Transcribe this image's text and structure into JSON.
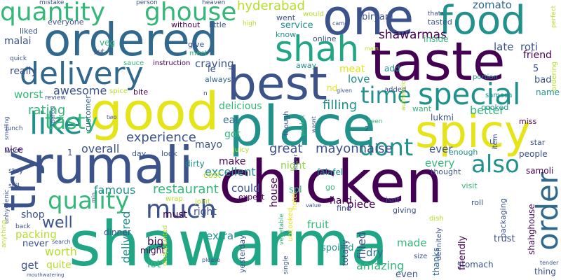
{
  "palette": {
    "dark_purple": "#440154",
    "indigo": "#3b528b",
    "blue": "#31688e",
    "teal": "#21918c",
    "green": "#35b779",
    "lime": "#90d743",
    "yellow": "#e5e419",
    "background": "#ffffff"
  },
  "words": [
    {
      "text": "shawarma",
      "color": "#21a685"
    },
    {
      "text": "chicken",
      "color": "#440154"
    },
    {
      "text": "rumali",
      "color": "#3b528b"
    },
    {
      "text": "place",
      "color": "#21918c"
    },
    {
      "text": "taste",
      "color": "#440154"
    },
    {
      "text": "good",
      "color": "#e5e419"
    },
    {
      "text": "one",
      "color": "#3b528b"
    },
    {
      "text": "ordered",
      "color": "#31688e"
    },
    {
      "text": "best",
      "color": "#3b528b"
    },
    {
      "text": "food",
      "color": "#21918c"
    },
    {
      "text": "spicy",
      "color": "#e5e419"
    },
    {
      "text": "try",
      "color": "#3b528b"
    },
    {
      "text": "delivery",
      "color": "#31688e"
    },
    {
      "text": "shah",
      "color": "#21a685"
    },
    {
      "text": "order",
      "color": "#31688e"
    },
    {
      "text": "special",
      "color": "#21918c"
    },
    {
      "text": "like",
      "color": "#21918c"
    },
    {
      "text": "quantity",
      "color": "#35b779"
    },
    {
      "text": "ghouse",
      "color": "#35b779"
    },
    {
      "text": "much",
      "color": "#3b528b"
    },
    {
      "text": "quality",
      "color": "#35b779"
    },
    {
      "text": "time",
      "color": "#21918c"
    },
    {
      "text": "also",
      "color": "#21918c"
    },
    {
      "text": "dont",
      "color": "#21918c"
    },
    {
      "text": "tasty",
      "color": "#35b779"
    },
    {
      "text": "mayonnaise",
      "color": "#3b528b"
    },
    {
      "text": "great",
      "color": "#3b528b"
    },
    {
      "text": "shawarmas",
      "color": "#440154"
    },
    {
      "text": "hyderabad",
      "color": "#b5de2b"
    },
    {
      "text": "restaurant",
      "color": "#35b779"
    },
    {
      "text": "experience",
      "color": "#3b528b"
    },
    {
      "text": "well",
      "color": "#3b528b"
    },
    {
      "text": "zomato",
      "color": "#31688e"
    },
    {
      "text": "rating",
      "color": "#35b779"
    },
    {
      "text": "filling",
      "color": "#21918c"
    },
    {
      "text": "awesome",
      "color": "#3b528b"
    },
    {
      "text": "better",
      "color": "#35b779"
    },
    {
      "text": "delicious",
      "color": "#35b779"
    },
    {
      "text": "excellent",
      "color": "#21918c"
    },
    {
      "text": "service",
      "color": "#21918c"
    },
    {
      "text": "worth",
      "color": "#b5de2b"
    },
    {
      "text": "packing",
      "color": "#b5de2b"
    },
    {
      "text": "famous",
      "color": "#21918c"
    },
    {
      "text": "overall",
      "color": "#3b528b"
    },
    {
      "text": "amazing",
      "color": "#35b779"
    },
    {
      "text": "worst",
      "color": "#35b779"
    },
    {
      "text": "customer",
      "color": "#31688e"
    },
    {
      "text": "biryani",
      "color": "#3b528b"
    },
    {
      "text": "late",
      "color": "#3b528b"
    },
    {
      "text": "roti",
      "color": "#3b528b"
    },
    {
      "text": "friend",
      "color": "#440154"
    },
    {
      "text": "love",
      "color": "#21918c"
    },
    {
      "text": "meat",
      "color": "#e5e419"
    },
    {
      "text": "craving",
      "color": "#3b528b"
    },
    {
      "text": "make",
      "color": "#440154"
    },
    {
      "text": "got",
      "color": "#35b779"
    },
    {
      "text": "eat",
      "color": "#31688e"
    },
    {
      "text": "mayo",
      "color": "#3b528b"
    },
    {
      "text": "every",
      "color": "#35b779"
    },
    {
      "text": "ever",
      "color": "#3b528b"
    },
    {
      "text": "night",
      "color": "#90d743"
    },
    {
      "text": "piece",
      "color": "#440154"
    },
    {
      "text": "could",
      "color": "#3b528b"
    },
    {
      "text": "delivered",
      "color": "#21918c"
    },
    {
      "text": "filled",
      "color": "#3b528b"
    },
    {
      "text": "fruit",
      "color": "#35b779"
    },
    {
      "text": "dry",
      "color": "#31688e"
    },
    {
      "text": "made",
      "color": "#35b779"
    },
    {
      "text": "must",
      "color": "#440154"
    },
    {
      "text": "right",
      "color": "#3b528b"
    },
    {
      "text": "extra",
      "color": "#21918c"
    },
    {
      "text": "big",
      "color": "#440154"
    },
    {
      "text": "lot",
      "color": "#35b779"
    },
    {
      "text": "get",
      "color": "#3b528b"
    },
    {
      "text": "quite",
      "color": "#b5de2b"
    },
    {
      "text": "shop",
      "color": "#3b528b"
    },
    {
      "text": "never",
      "color": "#3b528b"
    },
    {
      "text": "nice",
      "color": "#440154"
    },
    {
      "text": "really",
      "color": "#3b528b"
    },
    {
      "text": "malai",
      "color": "#3b528b"
    },
    {
      "text": "veg",
      "color": "#35b779"
    },
    {
      "text": "liked",
      "color": "#3b528b"
    },
    {
      "text": "everyone",
      "color": "#3b528b"
    },
    {
      "text": "went",
      "color": "#3b528b"
    },
    {
      "text": "inside",
      "color": "#35b779"
    },
    {
      "text": "tasted",
      "color": "#3b528b"
    },
    {
      "text": "add",
      "color": "#21918c"
    },
    {
      "text": "le",
      "color": "#3b528b"
    },
    {
      "text": "bad",
      "color": "#3b528b"
    },
    {
      "text": "cooked",
      "color": "#21918c"
    },
    {
      "text": "samosa",
      "color": "#21918c"
    },
    {
      "text": "lukmi",
      "color": "#3b528b"
    },
    {
      "text": "spl",
      "color": "#35b779"
    },
    {
      "text": "falafel",
      "color": "#21918c"
    },
    {
      "text": "hard",
      "color": "#440154"
    },
    {
      "text": "house",
      "color": "#440154"
    },
    {
      "text": "isnt",
      "color": "#3b528b"
    },
    {
      "text": "giving",
      "color": "#3b528b"
    },
    {
      "text": "dirty",
      "color": "#21918c"
    },
    {
      "text": "cost",
      "color": "#b5de2b"
    },
    {
      "text": "expect",
      "color": "#440154"
    },
    {
      "text": "dinner",
      "color": "#3b528b"
    },
    {
      "text": "might",
      "color": "#440154"
    },
    {
      "text": "yesterday",
      "color": "#3b528b"
    },
    {
      "text": "spoiled",
      "color": "#21918c"
    },
    {
      "text": "totally",
      "color": "#3b528b"
    },
    {
      "text": "thanks",
      "color": "#31688e"
    },
    {
      "text": "stomach",
      "color": "#3b528b"
    },
    {
      "text": "trust",
      "color": "#3b528b"
    },
    {
      "text": "friendly",
      "color": "#440154"
    },
    {
      "text": "shahghouse",
      "color": "#440154"
    },
    {
      "text": "packaging",
      "color": "#3b528b"
    },
    {
      "text": "people",
      "color": "#3b528b"
    },
    {
      "text": "samoli",
      "color": "#440154"
    },
    {
      "text": "visit",
      "color": "#35b779"
    },
    {
      "text": "thought",
      "color": "#3b528b"
    },
    {
      "text": "enough",
      "color": "#21918c"
    },
    {
      "text": "name",
      "color": "#21918c"
    },
    {
      "text": "miss",
      "color": "#440154"
    },
    {
      "text": "star",
      "color": "#3b528b"
    },
    {
      "text": "item",
      "color": "#3b528b"
    },
    {
      "text": "want",
      "color": "#35b779"
    },
    {
      "text": "without",
      "color": "#440154"
    },
    {
      "text": "little",
      "color": "#3b528b"
    },
    {
      "text": "high",
      "color": "#b5de2b"
    },
    {
      "text": "know",
      "color": "#21918c"
    },
    {
      "text": "online",
      "color": "#3b528b"
    },
    {
      "text": "give",
      "color": "#3b528b"
    },
    {
      "text": "meet",
      "color": "#35b779"
    },
    {
      "text": "instruction",
      "color": "#440154"
    },
    {
      "text": "sauce",
      "color": "#35b779"
    },
    {
      "text": "away",
      "color": "#21918c"
    },
    {
      "text": "always",
      "color": "#31688e"
    },
    {
      "text": "bite",
      "color": "#440154"
    },
    {
      "text": "spice",
      "color": "#b5de2b"
    },
    {
      "text": "review",
      "color": "#3b528b"
    },
    {
      "text": "quick",
      "color": "#3b528b"
    },
    {
      "text": "put",
      "color": "#3b528b"
    },
    {
      "text": "portion",
      "color": "#21918c"
    },
    {
      "text": "ordering",
      "color": "#b5de2b"
    },
    {
      "text": "mistake",
      "color": "#3b528b"
    },
    {
      "text": "person",
      "color": "#3b528b"
    },
    {
      "text": "heaven",
      "color": "#3b528b"
    },
    {
      "text": "would",
      "color": "#b5de2b"
    },
    {
      "text": "thats",
      "color": "#3b528b"
    },
    {
      "text": "perfect",
      "color": "#b5de2b"
    },
    {
      "text": "came",
      "color": "#3b528b"
    },
    {
      "text": "main",
      "color": "#b5de2b"
    },
    {
      "text": "added",
      "color": "#3b528b"
    },
    {
      "text": "given",
      "color": "#3b528b"
    },
    {
      "text": "authentic",
      "color": "#b5de2b"
    },
    {
      "text": "seen",
      "color": "#35b779"
    },
    {
      "text": "though",
      "color": "#3b528b"
    },
    {
      "text": "pocket",
      "color": "#35b779"
    },
    {
      "text": "wasnt",
      "color": "#3b528b"
    },
    {
      "text": "either",
      "color": "#3b528b"
    },
    {
      "text": "hotel",
      "color": "#e5e419"
    },
    {
      "text": "go",
      "color": "#35b779"
    },
    {
      "text": "vegetable",
      "color": "#35b779"
    },
    {
      "text": "value",
      "color": "#3b528b"
    },
    {
      "text": "uncooked",
      "color": "#e5e419"
    },
    {
      "text": "find",
      "color": "#3b528b"
    },
    {
      "text": "dish",
      "color": "#b5de2b"
    },
    {
      "text": "roll",
      "color": "#3b528b"
    },
    {
      "text": "definitely",
      "color": "#3b528b"
    },
    {
      "text": "size",
      "color": "#3b528b"
    },
    {
      "text": "single",
      "color": "#3b528b"
    },
    {
      "text": "even",
      "color": "#3b528b"
    },
    {
      "text": "thing",
      "color": "#3b528b"
    },
    {
      "text": "tender",
      "color": "#3b528b"
    },
    {
      "text": "please",
      "color": "#3b528b"
    },
    {
      "text": "disappointed",
      "color": "#b5de2b"
    },
    {
      "text": "joint",
      "color": "#b5de2b"
    },
    {
      "text": "wrap",
      "color": "#b5de2b"
    },
    {
      "text": "look",
      "color": "#3b528b"
    },
    {
      "text": "juicy",
      "color": "#b5de2b"
    },
    {
      "text": "day",
      "color": "#3b528b"
    },
    {
      "text": "wont",
      "color": "#3b528b"
    },
    {
      "text": "lunch",
      "color": "#3b528b"
    },
    {
      "text": "stay",
      "color": "#3b528b"
    },
    {
      "text": "still",
      "color": "#3b528b"
    },
    {
      "text": "unhygienic",
      "color": "#3b528b"
    },
    {
      "text": "anything",
      "color": "#b5de2b"
    },
    {
      "text": "back",
      "color": "#3b528b"
    },
    {
      "text": "search",
      "color": "#3b528b"
    },
    {
      "text": "mouthwatering",
      "color": "#3b528b"
    },
    {
      "text": "min",
      "color": "#3b528b"
    },
    {
      "text": "smelling",
      "color": "#3b528b"
    },
    {
      "text": "parcel",
      "color": "#3b528b"
    },
    {
      "text": "two",
      "color": "#3b528b"
    },
    {
      "text": "n",
      "color": "#3b528b"
    },
    {
      "text": "nd",
      "color": "#e5e419"
    },
    {
      "text": "5",
      "color": "#3b528b"
    },
    {
      "text": "2",
      "color": "#3b528b"
    },
    {
      "text": "1",
      "color": "#3b528b"
    },
    {
      "text": "u",
      "color": "#3b528b"
    }
  ]
}
